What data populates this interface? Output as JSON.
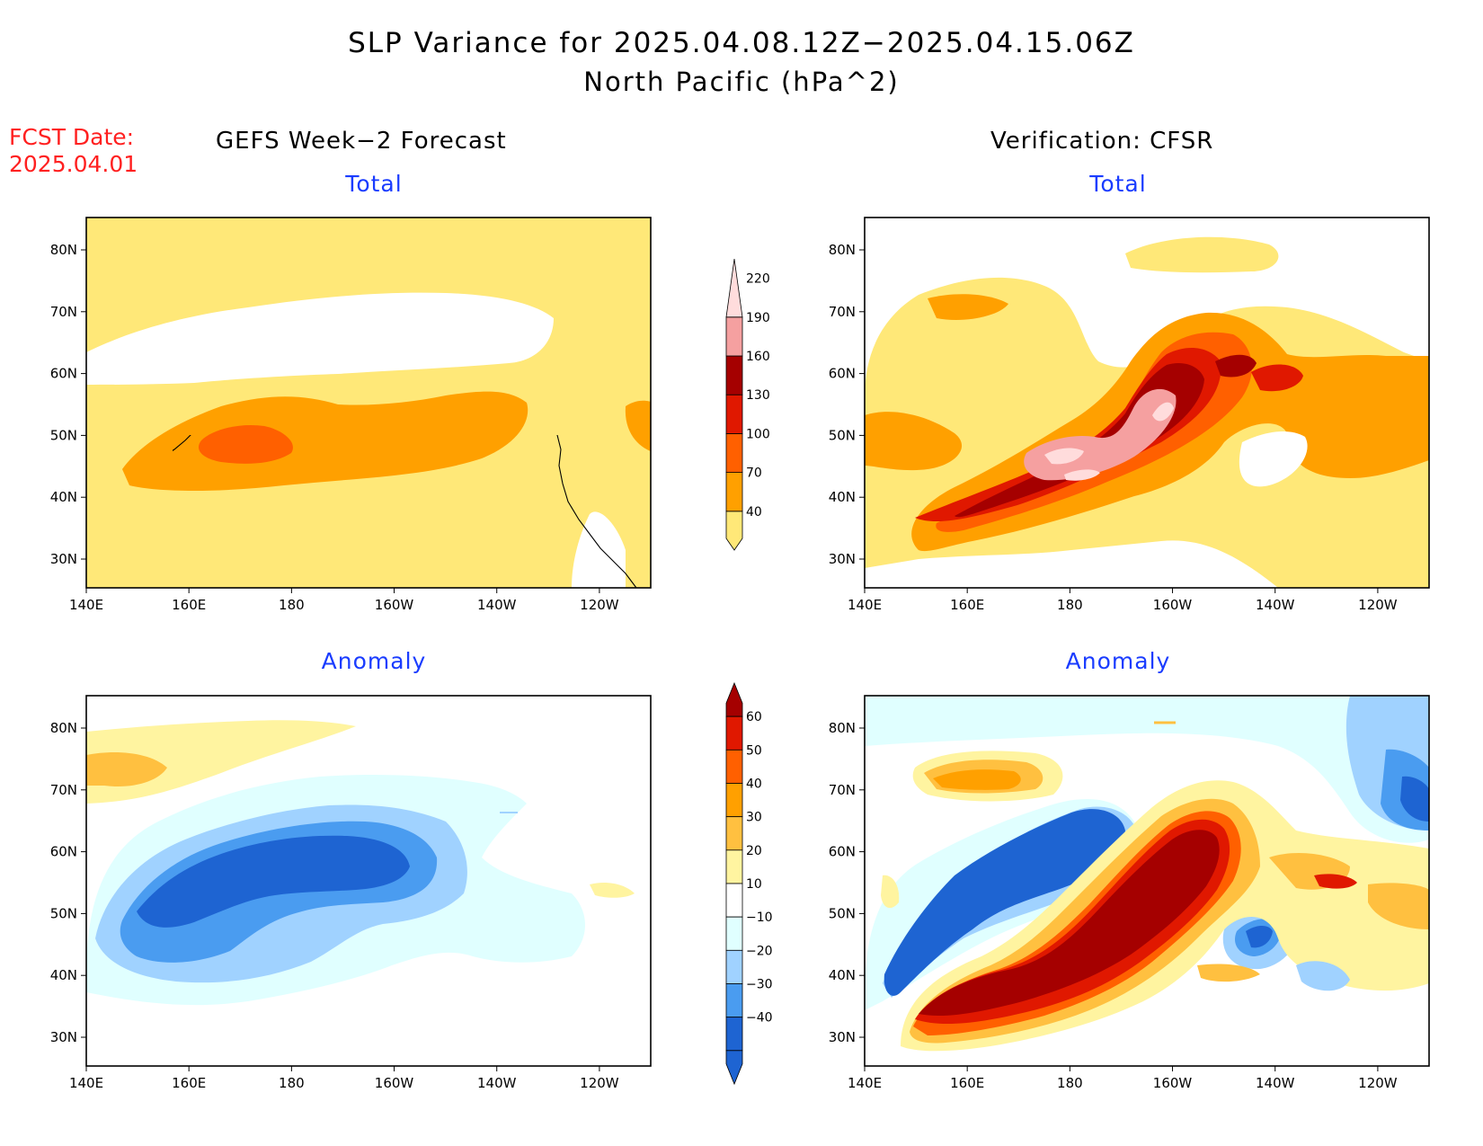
{
  "title": {
    "line1": "SLP Variance for 2025.04.08.12Z−2025.04.15.06Z",
    "line2": "North Pacific (hPa^2)"
  },
  "forecast_date": {
    "label": "FCST Date:",
    "value": "2025.04.01"
  },
  "columns": {
    "left": "GEFS Week−2 Forecast",
    "right": "Verification: CFSR"
  },
  "panels": [
    {
      "id": "fc-total",
      "subtitle": "Total"
    },
    {
      "id": "ver-total",
      "subtitle": "Total"
    },
    {
      "id": "fc-anom",
      "subtitle": "Anomaly"
    },
    {
      "id": "ver-anom",
      "subtitle": "Anomaly"
    }
  ],
  "axes": {
    "lon_ticks": [
      "140E",
      "160E",
      "180",
      "160W",
      "140W",
      "120W"
    ],
    "lat_ticks": [
      "80N",
      "70N",
      "60N",
      "50N",
      "40N",
      "30N"
    ]
  },
  "colorbars": {
    "total": {
      "levels": [
        "40",
        "70",
        "100",
        "130",
        "160",
        "190",
        "220"
      ],
      "colors": [
        "#ffe878",
        "#ffa000",
        "#ff6000",
        "#e01800",
        "#a50000",
        "#f5a0a0",
        "#ffdcdc"
      ]
    },
    "anomaly": {
      "levels": [
        "60",
        "50",
        "40",
        "30",
        "20",
        "10",
        "−10",
        "−20",
        "−30",
        "−40"
      ],
      "colors": [
        "#a50000",
        "#e01800",
        "#ff6000",
        "#ffa000",
        "#ffc040",
        "#fff4a0",
        "#ffffff",
        "#e0ffff",
        "#a0d2ff",
        "#4a9cf0",
        "#1e64d2",
        "#1e64d2"
      ]
    }
  }
}
